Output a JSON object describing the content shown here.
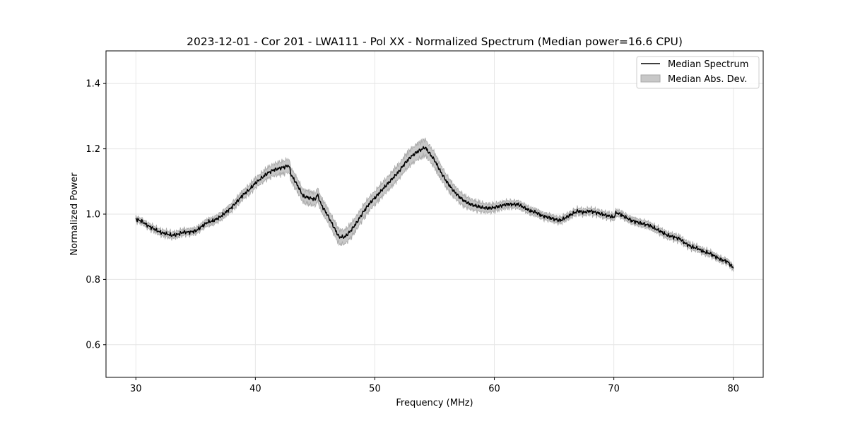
{
  "chart_data": {
    "type": "line",
    "title": "2023-12-01 - Cor 201 - LWA111 - Pol XX - Normalized Spectrum (Median power=16.6 CPU)",
    "xlabel": "Frequency (MHz)",
    "ylabel": "Normalized Power",
    "xlim": [
      27.5,
      82.5
    ],
    "ylim": [
      0.5,
      1.5
    ],
    "xticks": [
      30,
      40,
      50,
      60,
      70,
      80
    ],
    "yticks": [
      0.6,
      0.8,
      1.0,
      1.2,
      1.4
    ],
    "grid": true,
    "legend_position": "upper-right",
    "series": [
      {
        "name": "Median Spectrum",
        "kind": "line",
        "color": "#000000",
        "x": [
          30,
          30.5,
          31,
          31.5,
          32,
          32.5,
          33,
          33.5,
          34,
          34.5,
          35,
          35.5,
          36,
          36.5,
          37,
          37.5,
          38,
          38.5,
          39,
          39.5,
          40,
          40.5,
          41,
          41.5,
          42,
          42.5,
          42.8,
          43,
          43.5,
          44,
          44.5,
          45,
          45.2,
          45.5,
          46,
          46.5,
          47,
          47.5,
          48,
          48.5,
          49,
          49.5,
          50,
          50.5,
          51,
          51.5,
          52,
          52.5,
          53,
          53.5,
          54,
          54.2,
          54.5,
          55,
          55.5,
          56,
          56.5,
          57,
          57.5,
          58,
          58.5,
          59,
          59.5,
          60,
          60.5,
          61,
          61.5,
          62,
          62.5,
          63,
          63.5,
          64,
          64.5,
          65,
          65.5,
          66,
          66.5,
          67,
          67.5,
          68,
          68.5,
          69,
          69.5,
          70,
          70.2,
          70.5,
          71,
          71.5,
          72,
          72.5,
          73,
          73.5,
          74,
          74.5,
          75,
          75.5,
          76,
          76.5,
          77,
          77.5,
          78,
          78.5,
          79,
          79.5,
          80
        ],
        "y": [
          0.985,
          0.978,
          0.965,
          0.955,
          0.945,
          0.94,
          0.935,
          0.938,
          0.945,
          0.945,
          0.948,
          0.962,
          0.975,
          0.98,
          0.99,
          1.005,
          1.02,
          1.04,
          1.06,
          1.075,
          1.095,
          1.11,
          1.125,
          1.135,
          1.14,
          1.145,
          1.15,
          1.12,
          1.09,
          1.055,
          1.05,
          1.045,
          1.06,
          1.03,
          1.0,
          0.965,
          0.93,
          0.93,
          0.95,
          0.975,
          1.005,
          1.03,
          1.05,
          1.07,
          1.09,
          1.11,
          1.13,
          1.155,
          1.175,
          1.19,
          1.2,
          1.205,
          1.19,
          1.165,
          1.13,
          1.1,
          1.075,
          1.055,
          1.04,
          1.03,
          1.025,
          1.02,
          1.018,
          1.02,
          1.025,
          1.03,
          1.03,
          1.03,
          1.02,
          1.01,
          1.005,
          0.995,
          0.99,
          0.985,
          0.98,
          0.99,
          1.0,
          1.01,
          1.005,
          1.01,
          1.005,
          1.0,
          0.995,
          0.99,
          1.005,
          1.0,
          0.99,
          0.98,
          0.975,
          0.97,
          0.965,
          0.955,
          0.945,
          0.935,
          0.93,
          0.925,
          0.91,
          0.9,
          0.895,
          0.885,
          0.88,
          0.87,
          0.86,
          0.855,
          0.835
        ]
      },
      {
        "name": "Median Abs. Dev.",
        "kind": "band",
        "color": "#c8c8c8",
        "edge_color": "#a8a8a8",
        "x": [
          30,
          32.5,
          35,
          37.5,
          40,
          42.5,
          45,
          47,
          50,
          54,
          56,
          60,
          65,
          70,
          75,
          80
        ],
        "half_width": [
          0.008,
          0.01,
          0.01,
          0.012,
          0.015,
          0.02,
          0.02,
          0.022,
          0.02,
          0.025,
          0.02,
          0.012,
          0.01,
          0.01,
          0.01,
          0.008
        ]
      }
    ]
  }
}
